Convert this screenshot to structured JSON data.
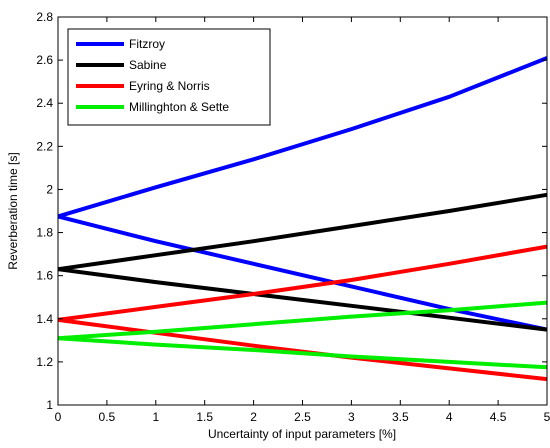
{
  "chart_data": {
    "type": "line",
    "title": "",
    "xlabel": "Uncertainty of input parameters [%]",
    "ylabel": "Reverberation time [s]",
    "xlim": [
      0,
      5
    ],
    "ylim": [
      1,
      2.8
    ],
    "xticks": [
      "0",
      "0.5",
      "1",
      "1.5",
      "2",
      "2.5",
      "3",
      "3.5",
      "4",
      "4.5",
      "5"
    ],
    "yticks": [
      "1",
      "1.2",
      "1.4",
      "1.6",
      "1.8",
      "2",
      "2.2",
      "2.4",
      "2.6",
      "2.8"
    ],
    "grid": false,
    "legend_position": "top-left",
    "series": [
      {
        "name": "Fitzroy",
        "color": "#0000ff",
        "x": [
          0,
          1,
          2,
          3,
          4,
          5
        ],
        "upper": [
          1.875,
          2.01,
          2.14,
          2.28,
          2.43,
          2.61
        ],
        "lower": [
          1.875,
          1.76,
          1.655,
          1.55,
          1.445,
          1.35
        ]
      },
      {
        "name": "Sabine",
        "color": "#000000",
        "x": [
          0,
          1,
          2,
          3,
          4,
          5
        ],
        "upper": [
          1.63,
          1.695,
          1.76,
          1.83,
          1.9,
          1.975
        ],
        "lower": [
          1.63,
          1.57,
          1.515,
          1.46,
          1.405,
          1.35
        ]
      },
      {
        "name": "Eyring & Norris",
        "color": "#ff0000",
        "x": [
          0,
          1,
          2,
          3,
          4,
          5
        ],
        "upper": [
          1.395,
          1.455,
          1.515,
          1.58,
          1.655,
          1.735
        ],
        "lower": [
          1.395,
          1.335,
          1.275,
          1.22,
          1.17,
          1.12
        ]
      },
      {
        "name": "Millinghton & Sette",
        "color": "#00ee00",
        "x": [
          0,
          1,
          2,
          3,
          4,
          5
        ],
        "upper": [
          1.31,
          1.34,
          1.375,
          1.41,
          1.44,
          1.475
        ],
        "lower": [
          1.31,
          1.28,
          1.255,
          1.225,
          1.2,
          1.175
        ]
      }
    ]
  }
}
